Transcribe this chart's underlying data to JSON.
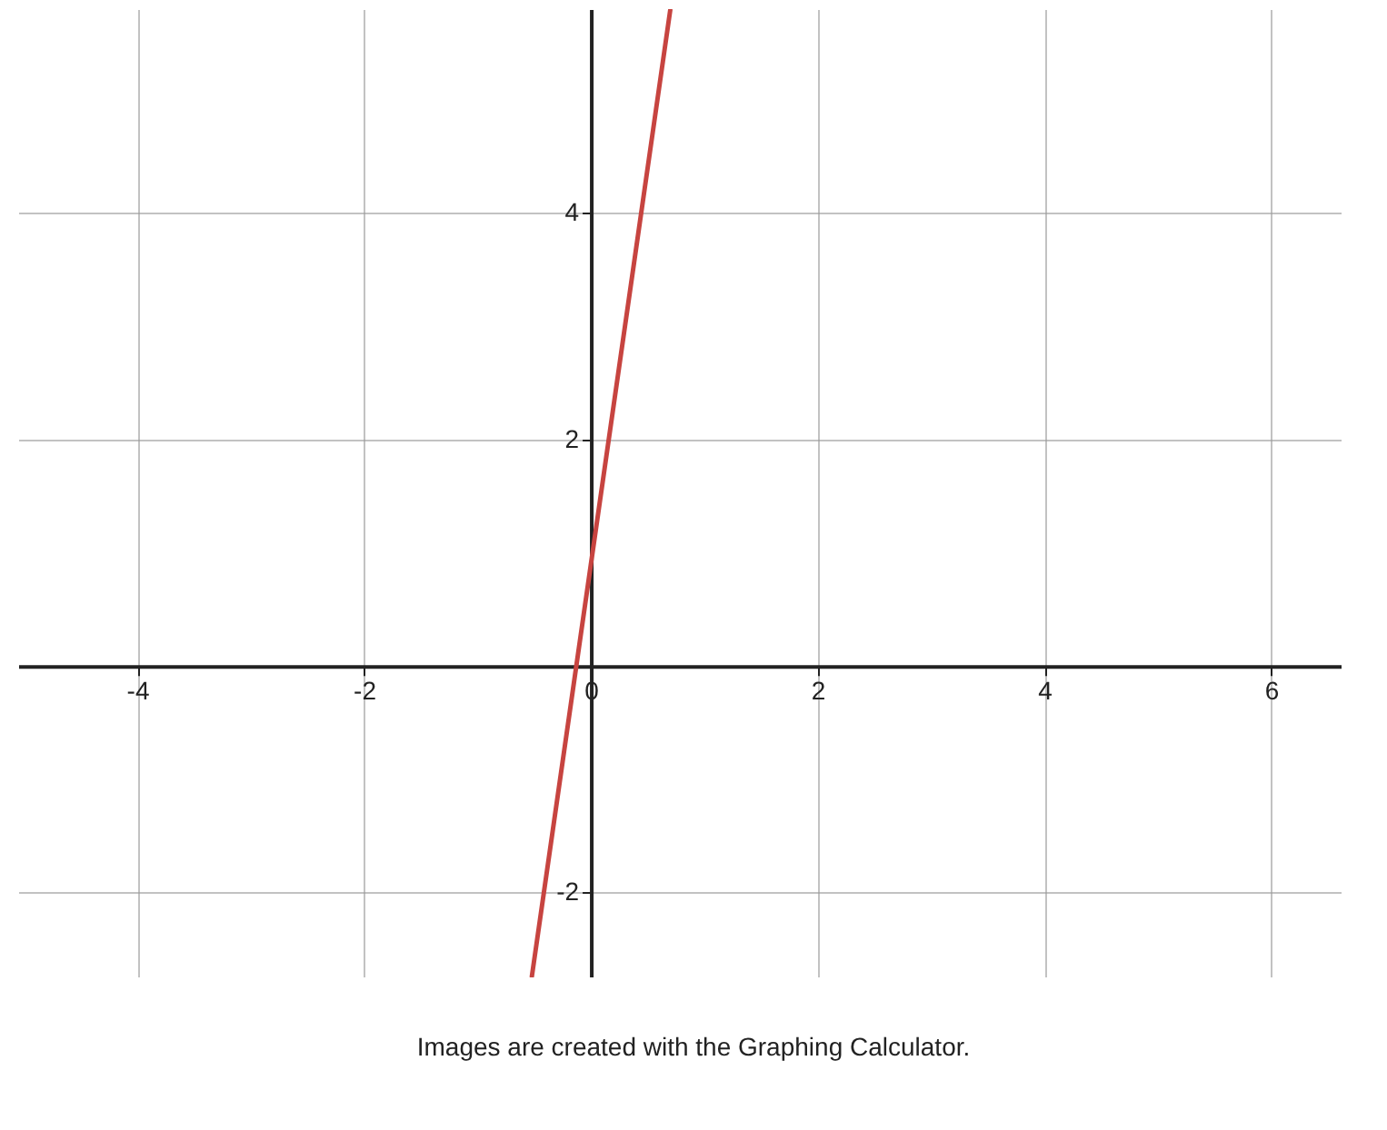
{
  "chart_data": {
    "type": "line",
    "x": [
      -0.52,
      0.7
    ],
    "series": [
      {
        "color": "#c74440",
        "values": [
          -2.74,
          5.79
        ]
      }
    ],
    "xlim": [
      -5.05,
      6.62
    ],
    "xticks": [
      -4,
      -2,
      0,
      2,
      4,
      6
    ],
    "ylim": [
      -2.75,
      5.8
    ],
    "yticks": [
      -2,
      {
        "value": 0,
        "label": null
      },
      2,
      4
    ],
    "grid": true,
    "marker": "none",
    "line_style": "solid",
    "annotations": [
      "Images are created with the Graphing Calculator."
    ]
  }
}
